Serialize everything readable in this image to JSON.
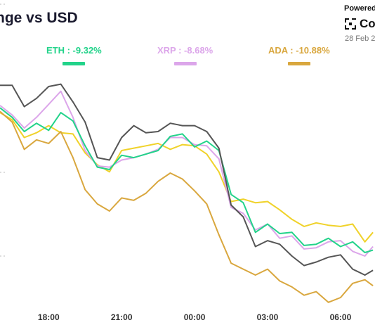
{
  "header": {
    "title": "nge vs USD",
    "powered": "Powered",
    "brand": "Coi",
    "date": "28 Feb 2"
  },
  "legend": [
    {
      "label": "ETH : -9.32%",
      "color": "#22d38a"
    },
    {
      "label": "XRP : -8.68%",
      "color": "#dca6ea"
    },
    {
      "label": "ADA : -10.88%",
      "color": "#d9a73e"
    }
  ],
  "chart_data": {
    "type": "line",
    "x_ticks": [
      "18:00",
      "21:00",
      "00:00",
      "03:00",
      "06:00"
    ],
    "x_range": [
      "16:00",
      "07:25"
    ],
    "grid": false,
    "series": [
      {
        "name": "ETH : -9.32%",
        "color": "#22d38a",
        "x": [
          "16:00",
          "16:30",
          "17:00",
          "17:30",
          "18:00",
          "18:30",
          "19:00",
          "19:30",
          "20:00",
          "20:30",
          "21:00",
          "21:30",
          "22:00",
          "22:30",
          "23:00",
          "23:30",
          "00:00",
          "00:30",
          "01:00",
          "01:30",
          "02:00",
          "02:30",
          "03:00",
          "03:30",
          "04:00",
          "04:30",
          "05:00",
          "05:30",
          "06:00",
          "06:30",
          "07:00",
          "07:20"
        ],
        "values": [
          -1.4,
          -2.2,
          -3.4,
          -2.7,
          -3.3,
          -1.8,
          -2.5,
          -4.6,
          -6.4,
          -6.6,
          -5.4,
          -5.6,
          -5.3,
          -5.0,
          -3.8,
          -3.6,
          -4.7,
          -4.2,
          -5.0,
          -8.7,
          -9.4,
          -11.9,
          -11.2,
          -12.0,
          -11.9,
          -13.0,
          -12.9,
          -12.4,
          -13.1,
          -12.7,
          -13.6,
          -13.4
        ]
      },
      {
        "name": "XRP : -8.68%",
        "color": "#dca6ea",
        "x": [
          "16:00",
          "16:30",
          "17:00",
          "17:30",
          "18:00",
          "18:30",
          "19:00",
          "19:30",
          "20:00",
          "20:30",
          "21:00",
          "21:30",
          "22:00",
          "22:30",
          "23:00",
          "23:30",
          "00:00",
          "00:30",
          "01:00",
          "01:30",
          "02:00",
          "02:30",
          "03:00",
          "03:30",
          "04:00",
          "04:30",
          "05:00",
          "05:30",
          "06:00",
          "06:30",
          "07:00",
          "07:20"
        ],
        "values": [
          -1.2,
          -2.0,
          -3.1,
          -2.2,
          -1.1,
          0.0,
          -2.2,
          -5.0,
          -6.3,
          -6.4,
          -5.8,
          -5.6,
          -5.3,
          -4.9,
          -3.9,
          -3.9,
          -4.5,
          -4.6,
          -5.7,
          -9.8,
          -10.3,
          -11.7,
          -11.2,
          -12.4,
          -12.2,
          -13.3,
          -13.2,
          -12.7,
          -12.6,
          -13.5,
          -13.9,
          -13.1
        ]
      },
      {
        "name": "ADA : -10.88%",
        "color": "#d9a73e",
        "x": [
          "16:00",
          "16:30",
          "17:00",
          "17:30",
          "18:00",
          "18:30",
          "19:00",
          "19:30",
          "20:00",
          "20:30",
          "21:00",
          "21:30",
          "22:00",
          "22:30",
          "23:00",
          "23:30",
          "00:00",
          "00:30",
          "01:00",
          "01:30",
          "02:00",
          "02:30",
          "03:00",
          "03:30",
          "04:00",
          "04:30",
          "05:00",
          "05:30",
          "06:00",
          "06:30",
          "07:00",
          "07:20"
        ],
        "values": [
          -1.7,
          -2.6,
          -4.9,
          -4.1,
          -4.4,
          -3.4,
          -5.6,
          -8.3,
          -9.5,
          -10.1,
          -9.0,
          -9.2,
          -8.6,
          -7.6,
          -6.9,
          -7.4,
          -8.4,
          -9.5,
          -12.1,
          -14.5,
          -15.0,
          -15.5,
          -15.0,
          -16.0,
          -16.5,
          -17.2,
          -16.9,
          -17.8,
          -17.4,
          -16.2,
          -15.9,
          -16.4
        ]
      },
      {
        "name": "",
        "color": "#555555",
        "x": [
          "16:00",
          "16:30",
          "17:00",
          "17:30",
          "18:00",
          "18:30",
          "19:00",
          "19:30",
          "20:00",
          "20:30",
          "21:00",
          "21:30",
          "22:00",
          "22:30",
          "23:00",
          "23:30",
          "00:00",
          "00:30",
          "01:00",
          "01:30",
          "02:00",
          "02:30",
          "03:00",
          "03:30",
          "04:00",
          "04:30",
          "05:00",
          "05:30",
          "06:00",
          "06:30",
          "07:00",
          "07:20"
        ],
        "values": [
          0.5,
          0.5,
          -1.3,
          -0.6,
          0.4,
          0.6,
          -0.9,
          -2.6,
          -5.6,
          -5.8,
          -3.9,
          -2.9,
          -3.5,
          -3.4,
          -2.7,
          -2.9,
          -2.9,
          -3.4,
          -4.8,
          -9.6,
          -10.6,
          -13.1,
          -12.6,
          -12.9,
          -13.9,
          -14.7,
          -14.4,
          -14.0,
          -13.8,
          -15.0,
          -15.5,
          -15.1
        ]
      },
      {
        "name": "",
        "color": "#f0d22a",
        "x": [
          "16:00",
          "16:30",
          "17:00",
          "17:30",
          "18:00",
          "18:30",
          "19:00",
          "19:30",
          "20:00",
          "20:30",
          "21:00",
          "21:30",
          "22:00",
          "22:30",
          "23:00",
          "23:30",
          "00:00",
          "00:30",
          "01:00",
          "01:30",
          "02:00",
          "02:30",
          "03:00",
          "03:30",
          "04:00",
          "04:30",
          "05:00",
          "05:30",
          "06:00",
          "06:30",
          "07:00",
          "07:20"
        ],
        "values": [
          -1.8,
          -2.4,
          -3.9,
          -3.5,
          -2.9,
          -3.5,
          -3.6,
          -5.2,
          -6.2,
          -6.8,
          -5.0,
          -4.8,
          -4.6,
          -4.4,
          -4.9,
          -4.5,
          -4.6,
          -5.3,
          -6.8,
          -9.3,
          -9.1,
          -9.4,
          -9.3,
          -10.0,
          -10.8,
          -11.4,
          -11.1,
          -11.3,
          -11.4,
          -11.2,
          -12.7,
          -11.9
        ]
      }
    ]
  }
}
